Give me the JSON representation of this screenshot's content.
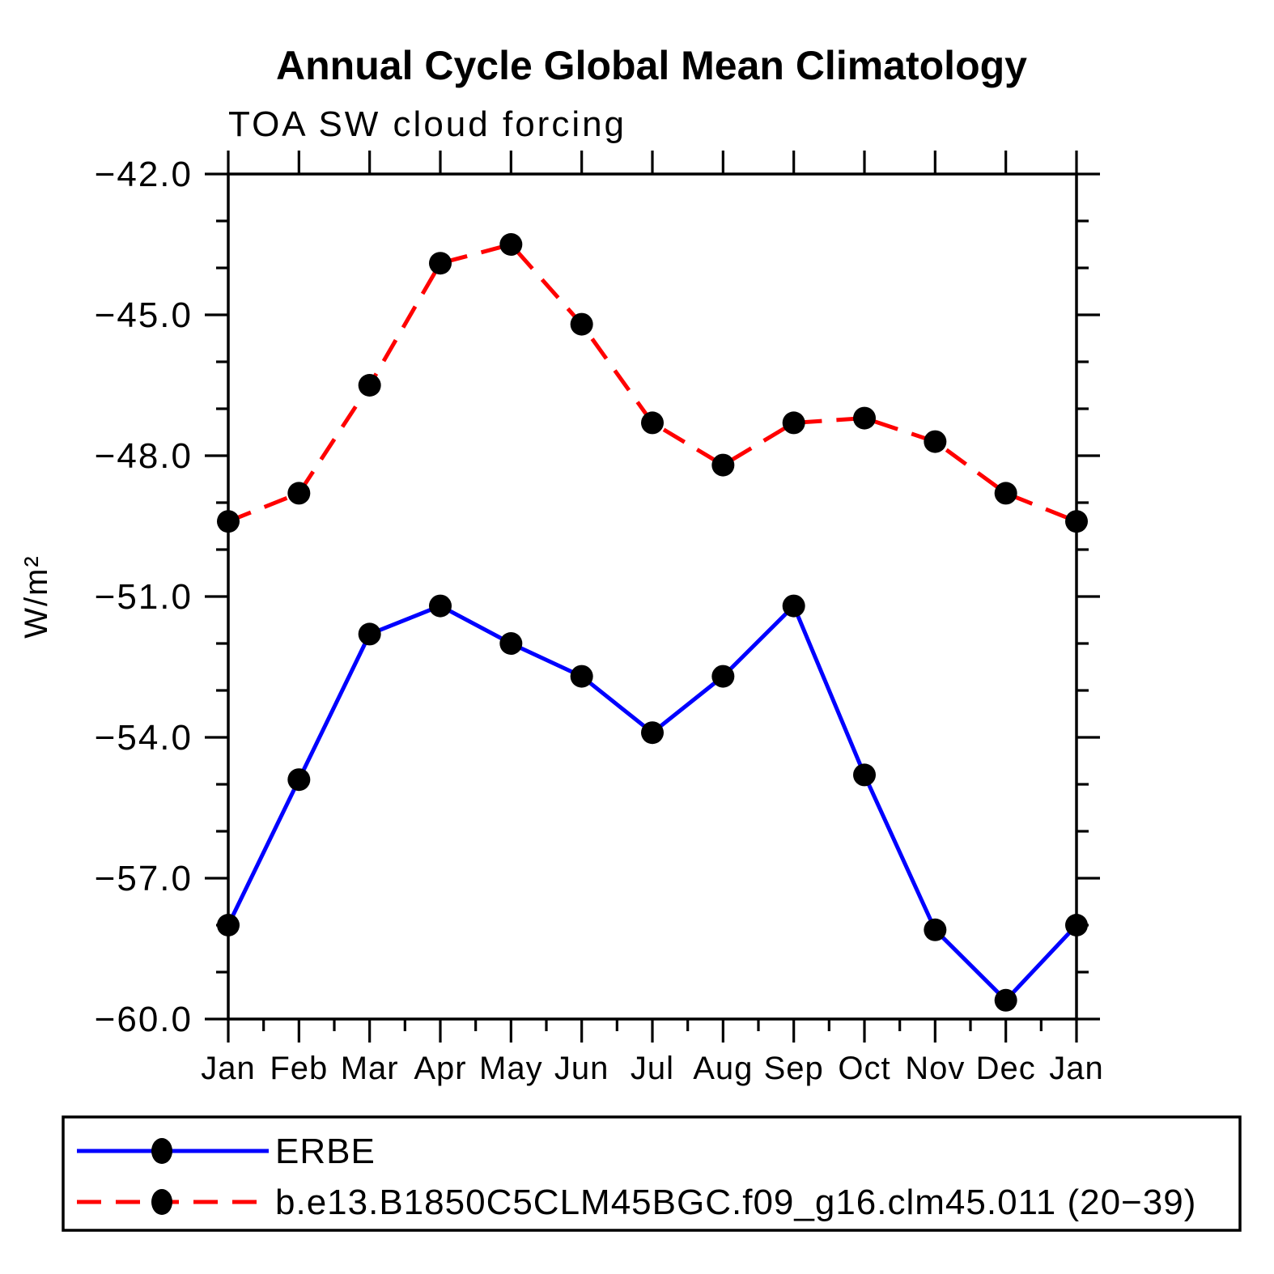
{
  "title": "Annual Cycle Global Mean Climatology",
  "subtitle": "TOA SW cloud forcing",
  "chart_data": {
    "type": "line",
    "title": "Annual Cycle Global Mean Climatology",
    "subtitle": "TOA SW cloud forcing",
    "xlabel": "",
    "ylabel": "W/m²",
    "x_categories": [
      "Jan",
      "Feb",
      "Mar",
      "Apr",
      "May",
      "Jun",
      "Jul",
      "Aug",
      "Sep",
      "Oct",
      "Nov",
      "Dec",
      "Jan"
    ],
    "ylim": [
      -60.0,
      -42.0
    ],
    "ytick_major_interval": 3.0,
    "ytick_minor_interval": 1.0,
    "ytick_labels": [
      "−42.0",
      "−45.0",
      "−48.0",
      "−51.0",
      "−54.0",
      "−57.0",
      "−60.0"
    ],
    "grid": false,
    "legend_position": "bottom-left-box",
    "series": [
      {
        "name": "ERBE",
        "color": "#0000ff",
        "line_style": "solid",
        "marker": "filled-black-circle",
        "marker_color": "#000000",
        "values": [
          -58.0,
          -54.9,
          -51.8,
          -51.2,
          -52.0,
          -52.7,
          -53.9,
          -52.7,
          -51.2,
          -54.8,
          -58.1,
          -59.6,
          -58.0
        ]
      },
      {
        "name": "b.e13.B1850C5CLM45BGC.f09_g16.clm45.011 (20−39)",
        "color": "#ff0000",
        "line_style": "dashed",
        "marker": "filled-black-circle",
        "marker_color": "#000000",
        "values": [
          -49.4,
          -48.8,
          -46.5,
          -43.9,
          -43.5,
          -45.2,
          -47.3,
          -48.2,
          -47.3,
          -47.2,
          -47.7,
          -48.8,
          -49.4
        ]
      }
    ],
    "axis_color": "#000000"
  }
}
